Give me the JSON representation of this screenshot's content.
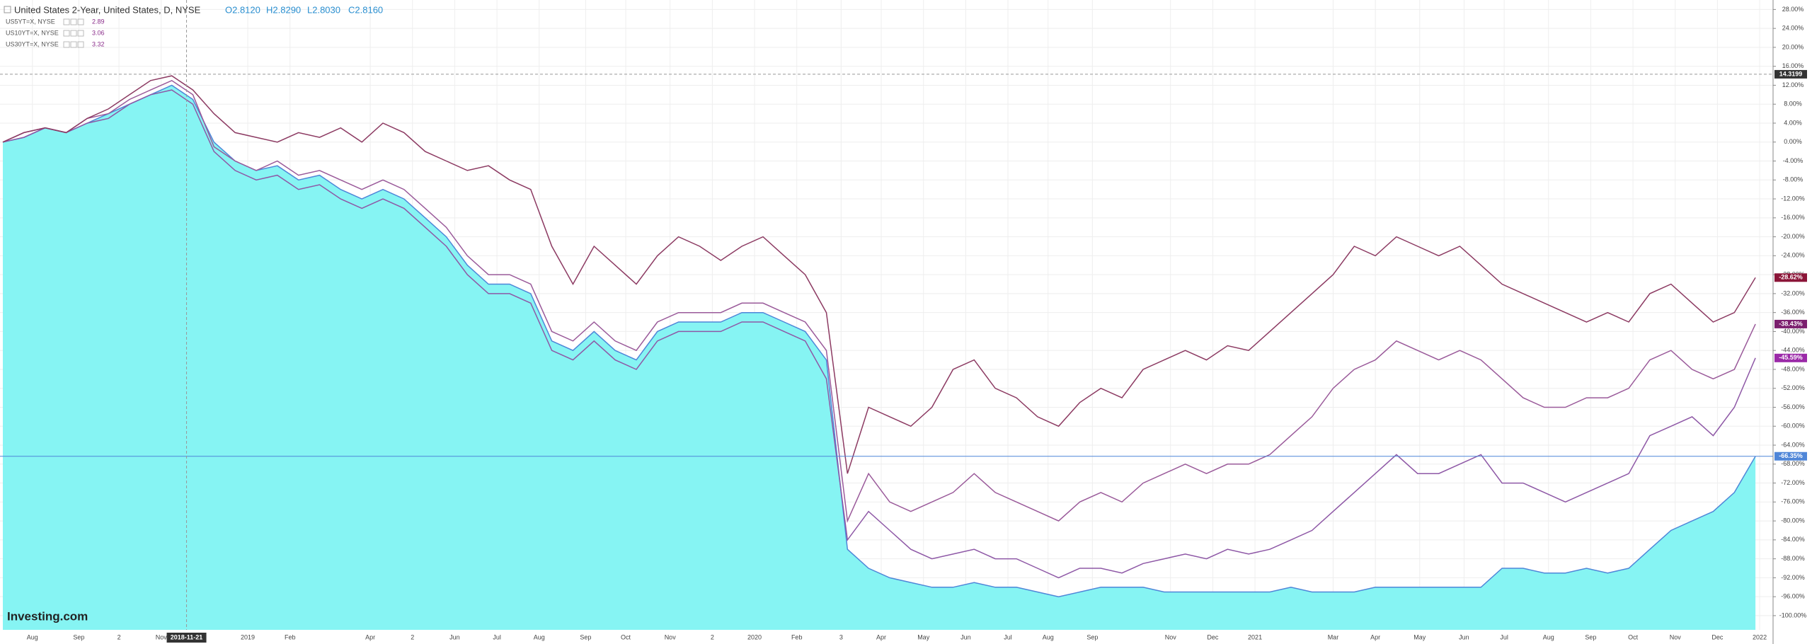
{
  "chart_data": {
    "type": "line",
    "header": {
      "ohlc": [
        "O2.8120",
        "H2.8290",
        "L2.8030",
        "C2.8160"
      ]
    },
    "watermark": "Investing.com",
    "xlim": [
      0,
      83.6
    ],
    "xticks": [
      {
        "value": 1.4,
        "label": "Aug"
      },
      {
        "value": 3.6,
        "label": "Sep"
      },
      {
        "value": 5.5,
        "label": "2"
      },
      {
        "value": 7.5,
        "label": "Nov"
      },
      {
        "value": 11.6,
        "label": "2019"
      },
      {
        "value": 13.6,
        "label": "Feb"
      },
      {
        "value": 17.4,
        "label": "Apr"
      },
      {
        "value": 19.4,
        "label": "2"
      },
      {
        "value": 21.4,
        "label": "Jun"
      },
      {
        "value": 23.4,
        "label": "Jul"
      },
      {
        "value": 25.4,
        "label": "Aug"
      },
      {
        "value": 27.6,
        "label": "Sep"
      },
      {
        "value": 29.5,
        "label": "Oct"
      },
      {
        "value": 31.6,
        "label": "Nov"
      },
      {
        "value": 33.6,
        "label": "2"
      },
      {
        "value": 35.6,
        "label": "2020"
      },
      {
        "value": 37.6,
        "label": "Feb"
      },
      {
        "value": 39.7,
        "label": "3"
      },
      {
        "value": 41.6,
        "label": "Apr"
      },
      {
        "value": 43.6,
        "label": "May"
      },
      {
        "value": 45.6,
        "label": "Jun"
      },
      {
        "value": 47.6,
        "label": "Jul"
      },
      {
        "value": 49.5,
        "label": "Aug"
      },
      {
        "value": 51.6,
        "label": "Sep"
      },
      {
        "value": 55.3,
        "label": "Nov"
      },
      {
        "value": 57.3,
        "label": "Dec"
      },
      {
        "value": 59.3,
        "label": "2021"
      },
      {
        "value": 63.0,
        "label": "Mar"
      },
      {
        "value": 65.0,
        "label": "Apr"
      },
      {
        "value": 67.1,
        "label": "May"
      },
      {
        "value": 69.2,
        "label": "Jun"
      },
      {
        "value": 71.1,
        "label": "Jul"
      },
      {
        "value": 73.2,
        "label": "Aug"
      },
      {
        "value": 75.2,
        "label": "Sep"
      },
      {
        "value": 77.2,
        "label": "Oct"
      },
      {
        "value": 79.2,
        "label": "Nov"
      },
      {
        "value": 81.2,
        "label": "Dec"
      },
      {
        "value": 83.2,
        "label": "2022"
      }
    ],
    "ylim": [
      -103,
      30
    ],
    "yticks": [
      {
        "value": 28,
        "label": "28.00%"
      },
      {
        "value": 24,
        "label": "24.00%"
      },
      {
        "value": 20,
        "label": "20.00%"
      },
      {
        "value": 16,
        "label": "16.00%"
      },
      {
        "value": 12,
        "label": "12.00%"
      },
      {
        "value": 8,
        "label": "8.00%"
      },
      {
        "value": 4,
        "label": "4.00%"
      },
      {
        "value": 0,
        "label": "0.00%"
      },
      {
        "value": -4,
        "label": "-4.00%"
      },
      {
        "value": -8,
        "label": "-8.00%"
      },
      {
        "value": -12,
        "label": "-12.00%"
      },
      {
        "value": -16,
        "label": "-16.00%"
      },
      {
        "value": -20,
        "label": "-20.00%"
      },
      {
        "value": -24,
        "label": "-24.00%"
      },
      {
        "value": -28,
        "label": "-28.00%"
      },
      {
        "value": -32,
        "label": "-32.00%"
      },
      {
        "value": -36,
        "label": "-36.00%"
      },
      {
        "value": -40,
        "label": "-40.00%"
      },
      {
        "value": -44,
        "label": "-44.00%"
      },
      {
        "value": -48,
        "label": "-48.00%"
      },
      {
        "value": -52,
        "label": "-52.00%"
      },
      {
        "value": -56,
        "label": "-56.00%"
      },
      {
        "value": -60,
        "label": "-60.00%"
      },
      {
        "value": -64,
        "label": "-64.00%"
      },
      {
        "value": -68,
        "label": "-68.00%"
      },
      {
        "value": -72,
        "label": "-72.00%"
      },
      {
        "value": -76,
        "label": "-76.00%"
      },
      {
        "value": -80,
        "label": "-80.00%"
      },
      {
        "value": -84,
        "label": "-84.00%"
      },
      {
        "value": -88,
        "label": "-88.00%"
      },
      {
        "value": -92,
        "label": "-92.00%"
      },
      {
        "value": -96,
        "label": "-96.00%"
      },
      {
        "value": -100,
        "label": "-100.00%"
      }
    ],
    "grid": true,
    "crosshair": {
      "x": 8.7,
      "x_label": "2018-11-21",
      "y": 14.3199
    },
    "series": [
      {
        "name": "United States 2-Year, United States, D, NYSE",
        "style": "area",
        "color": "#4f86d8",
        "fill": "#7ff3f2",
        "badge_color": "#4f86d8",
        "end_label": "-66.35%",
        "values": [
          0,
          1,
          3,
          2,
          4,
          6,
          8,
          10,
          12,
          9,
          0,
          -4,
          -6,
          -5,
          -8,
          -7,
          -10,
          -12,
          -10,
          -12,
          -16,
          -20,
          -26,
          -30,
          -30,
          -32,
          -42,
          -44,
          -40,
          -44,
          -46,
          -40,
          -38,
          -38,
          -38,
          -36,
          -36,
          -38,
          -40,
          -46,
          -86,
          -90,
          -92,
          -93,
          -94,
          -94,
          -93,
          -94,
          -94,
          -95,
          -96,
          -95,
          -94,
          -94,
          -94,
          -95,
          -95,
          -95,
          -95,
          -95,
          -95,
          -94,
          -95,
          -95,
          -95,
          -94,
          -94,
          -94,
          -94,
          -94,
          -94,
          -90,
          -90,
          -91,
          -91,
          -90,
          -91,
          -90,
          -86,
          -82,
          -80,
          -78,
          -74,
          -66.35
        ]
      },
      {
        "name": "US5YT=X, NYSE",
        "last": 2.89,
        "style": "line",
        "color": "#8e58a6",
        "badge_color": "#9b2aa8",
        "end_label": "-45.59%",
        "values": [
          0,
          1,
          3,
          2,
          4,
          5,
          8,
          10,
          11,
          8,
          -2,
          -6,
          -8,
          -7,
          -10,
          -9,
          -12,
          -14,
          -12,
          -14,
          -18,
          -22,
          -28,
          -32,
          -32,
          -34,
          -44,
          -46,
          -42,
          -46,
          -48,
          -42,
          -40,
          -40,
          -40,
          -38,
          -38,
          -40,
          -42,
          -50,
          -84,
          -78,
          -82,
          -86,
          -88,
          -87,
          -86,
          -88,
          -88,
          -90,
          -92,
          -90,
          -90,
          -91,
          -89,
          -88,
          -87,
          -88,
          -86,
          -87,
          -86,
          -84,
          -82,
          -78,
          -74,
          -70,
          -66,
          -70,
          -70,
          -68,
          -66,
          -72,
          -72,
          -74,
          -76,
          -74,
          -72,
          -70,
          -62,
          -60,
          -58,
          -62,
          -56,
          -45.59
        ]
      },
      {
        "name": "US10YT=X, NYSE",
        "last": 3.06,
        "style": "line",
        "color": "#9a5a9a",
        "badge_color": "#7b1f6e",
        "end_label": "-38.43%",
        "values": [
          0,
          2,
          3,
          2,
          5,
          6,
          9,
          11,
          13,
          10,
          -1,
          -4,
          -6,
          -4,
          -7,
          -6,
          -8,
          -10,
          -8,
          -10,
          -14,
          -18,
          -24,
          -28,
          -28,
          -30,
          -40,
          -42,
          -38,
          -42,
          -44,
          -38,
          -36,
          -36,
          -36,
          -34,
          -34,
          -36,
          -38,
          -44,
          -80,
          -70,
          -76,
          -78,
          -76,
          -74,
          -70,
          -74,
          -76,
          -78,
          -80,
          -76,
          -74,
          -76,
          -72,
          -70,
          -68,
          -70,
          -68,
          -68,
          -66,
          -62,
          -58,
          -52,
          -48,
          -46,
          -42,
          -44,
          -46,
          -44,
          -46,
          -50,
          -54,
          -56,
          -56,
          -54,
          -54,
          -52,
          -46,
          -44,
          -48,
          -50,
          -48,
          -38.43
        ]
      },
      {
        "name": "US30YT=X, NYSE",
        "last": 3.32,
        "style": "line",
        "color": "#8c3a62",
        "badge_color": "#8b1538",
        "end_label": "-28.62%",
        "values": [
          0,
          2,
          3,
          2,
          5,
          7,
          10,
          13,
          14,
          11,
          6,
          2,
          1,
          0,
          2,
          1,
          3,
          0,
          4,
          2,
          -2,
          -4,
          -6,
          -5,
          -8,
          -10,
          -22,
          -30,
          -22,
          -26,
          -30,
          -24,
          -20,
          -22,
          -25,
          -22,
          -20,
          -24,
          -28,
          -36,
          -70,
          -56,
          -58,
          -60,
          -56,
          -48,
          -46,
          -52,
          -54,
          -58,
          -60,
          -55,
          -52,
          -54,
          -48,
          -46,
          -44,
          -46,
          -43,
          -44,
          -40,
          -36,
          -32,
          -28,
          -22,
          -24,
          -20,
          -22,
          -24,
          -22,
          -26,
          -30,
          -32,
          -34,
          -36,
          -38,
          -36,
          -38,
          -32,
          -30,
          -34,
          -38,
          -36,
          -28.62
        ]
      }
    ]
  }
}
